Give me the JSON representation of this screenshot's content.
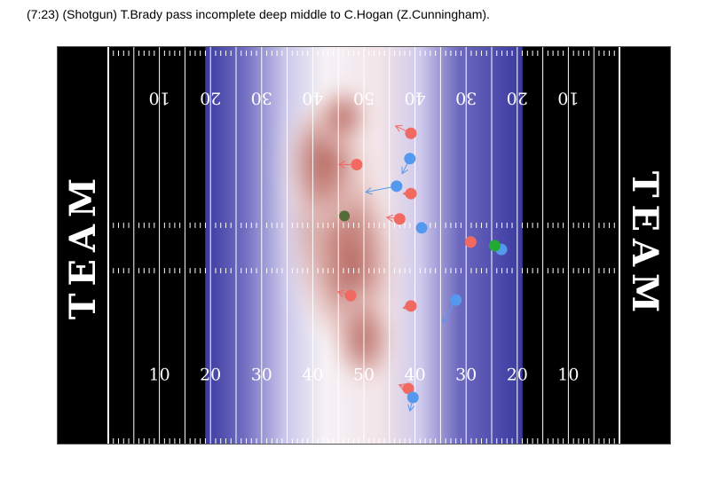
{
  "title": "(7:23) (Shotgun) T.Brady pass incomplete deep middle to C.Hogan (Z.Cunningham).",
  "chart_data": {
    "type": "scatter",
    "description_kind": "football field density map with player positions and motion vectors",
    "field": {
      "endzone_left_label": "TEAM",
      "endzone_right_label": "TEAM",
      "endzone_color": "#000000",
      "line_color": "#ffffff",
      "top_yard_labels": [
        {
          "yard": 10,
          "text": "10"
        },
        {
          "yard": 20,
          "text": "20"
        },
        {
          "yard": 30,
          "text": "30"
        },
        {
          "yard": 40,
          "text": "40"
        },
        {
          "yard": 50,
          "text": "50"
        },
        {
          "yard": 60,
          "text": "40"
        },
        {
          "yard": 70,
          "text": "30"
        },
        {
          "yard": 80,
          "text": "20"
        },
        {
          "yard": 90,
          "text": "10"
        }
      ],
      "bottom_yard_labels": [
        {
          "yard": 10,
          "text": "10"
        },
        {
          "yard": 20,
          "text": "20"
        },
        {
          "yard": 30,
          "text": "30"
        },
        {
          "yard": 40,
          "text": "40"
        },
        {
          "yard": 50,
          "text": "50"
        },
        {
          "yard": 60,
          "text": "40"
        },
        {
          "yard": 70,
          "text": "30"
        },
        {
          "yard": 80,
          "text": "20"
        },
        {
          "yard": 90,
          "text": "10"
        }
      ]
    },
    "density": {
      "low_color": "#3a3aa0",
      "mid_color": "#ffffff",
      "high_color": "#b05a52",
      "extent_x": [
        20,
        80
      ]
    },
    "series": [
      {
        "team": "offense",
        "color": "#f06a62",
        "points": [
          {
            "x": 59.2,
            "y": 41.7,
            "dx": -3,
            "dy": 1
          },
          {
            "x": 48.6,
            "y": 37.5,
            "dx": -3.5,
            "dy": 0
          },
          {
            "x": 59.2,
            "y": 33.6,
            "dx": -1.5,
            "dy": 0
          },
          {
            "x": 57.0,
            "y": 30.2,
            "dx": -2.5,
            "dy": 0.2
          },
          {
            "x": 70.9,
            "y": 27.1,
            "dx": 0,
            "dy": 0
          },
          {
            "x": 47.4,
            "y": 19.9,
            "dx": -2.5,
            "dy": 0.5
          },
          {
            "x": 59.2,
            "y": 18.5,
            "dx": -1.5,
            "dy": -0.3
          },
          {
            "x": 58.7,
            "y": 7.4,
            "dx": -1.8,
            "dy": 0.5
          }
        ]
      },
      {
        "team": "defense",
        "color": "#5599ee",
        "points": [
          {
            "x": 59.0,
            "y": 38.3,
            "dx": -1.5,
            "dy": -2
          },
          {
            "x": 56.4,
            "y": 34.6,
            "dx": -6,
            "dy": -0.8
          },
          {
            "x": 61.3,
            "y": 29.0,
            "dx": -0.8,
            "dy": -0.3
          },
          {
            "x": 76.9,
            "y": 26.1,
            "dx": 0,
            "dy": -0.2
          },
          {
            "x": 68.0,
            "y": 19.3,
            "dx": -2.5,
            "dy": -3
          },
          {
            "x": 59.6,
            "y": 6.2,
            "dx": -0.6,
            "dy": -1.8
          }
        ]
      }
    ],
    "ball": {
      "color": "#22aa33",
      "x": 75.6,
      "y": 26.6
    },
    "target_marker": {
      "color": "#556b3a",
      "x": 46.2,
      "y": 30.6
    }
  }
}
